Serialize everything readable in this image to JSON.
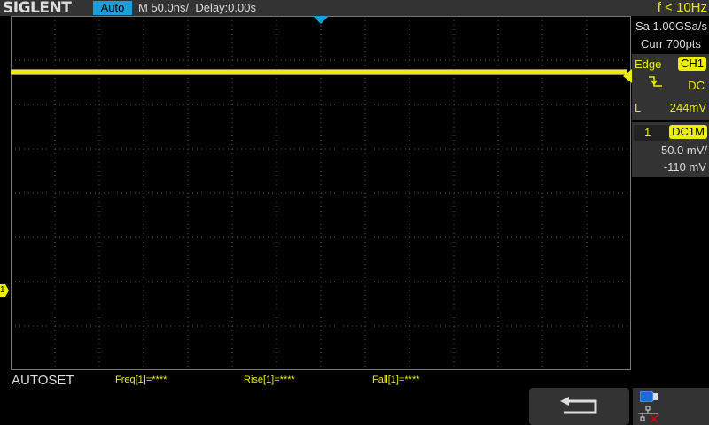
{
  "header": {
    "brand": "SIGLENT",
    "mode": "Auto",
    "timebase": "M 50.0ns/",
    "delay": "Delay:0.00s",
    "frequency": "f < 10Hz"
  },
  "acquisition": {
    "sample_rate": "Sa 1.00GSa/s",
    "memory": "Curr 700pts"
  },
  "trigger": {
    "type": "Edge",
    "source": "CH1",
    "slope_icon": "falling-edge-icon",
    "coupling": "DC",
    "level_label": "L",
    "level": "244mV"
  },
  "channel": {
    "number": "1",
    "coupling": "DC1M",
    "scale": "50.0 mV/",
    "offset": "-110 mV",
    "color": "#eeee00"
  },
  "footer": {
    "menu": "AUTOSET",
    "measurements": [
      "Freq[1]=****",
      "Rise[1]=****",
      "Fall[1]=****"
    ],
    "back_icon": "return-arrow-icon",
    "usb_icon": "usb-drive-icon",
    "network_icon": "network-disconnected-icon"
  }
}
